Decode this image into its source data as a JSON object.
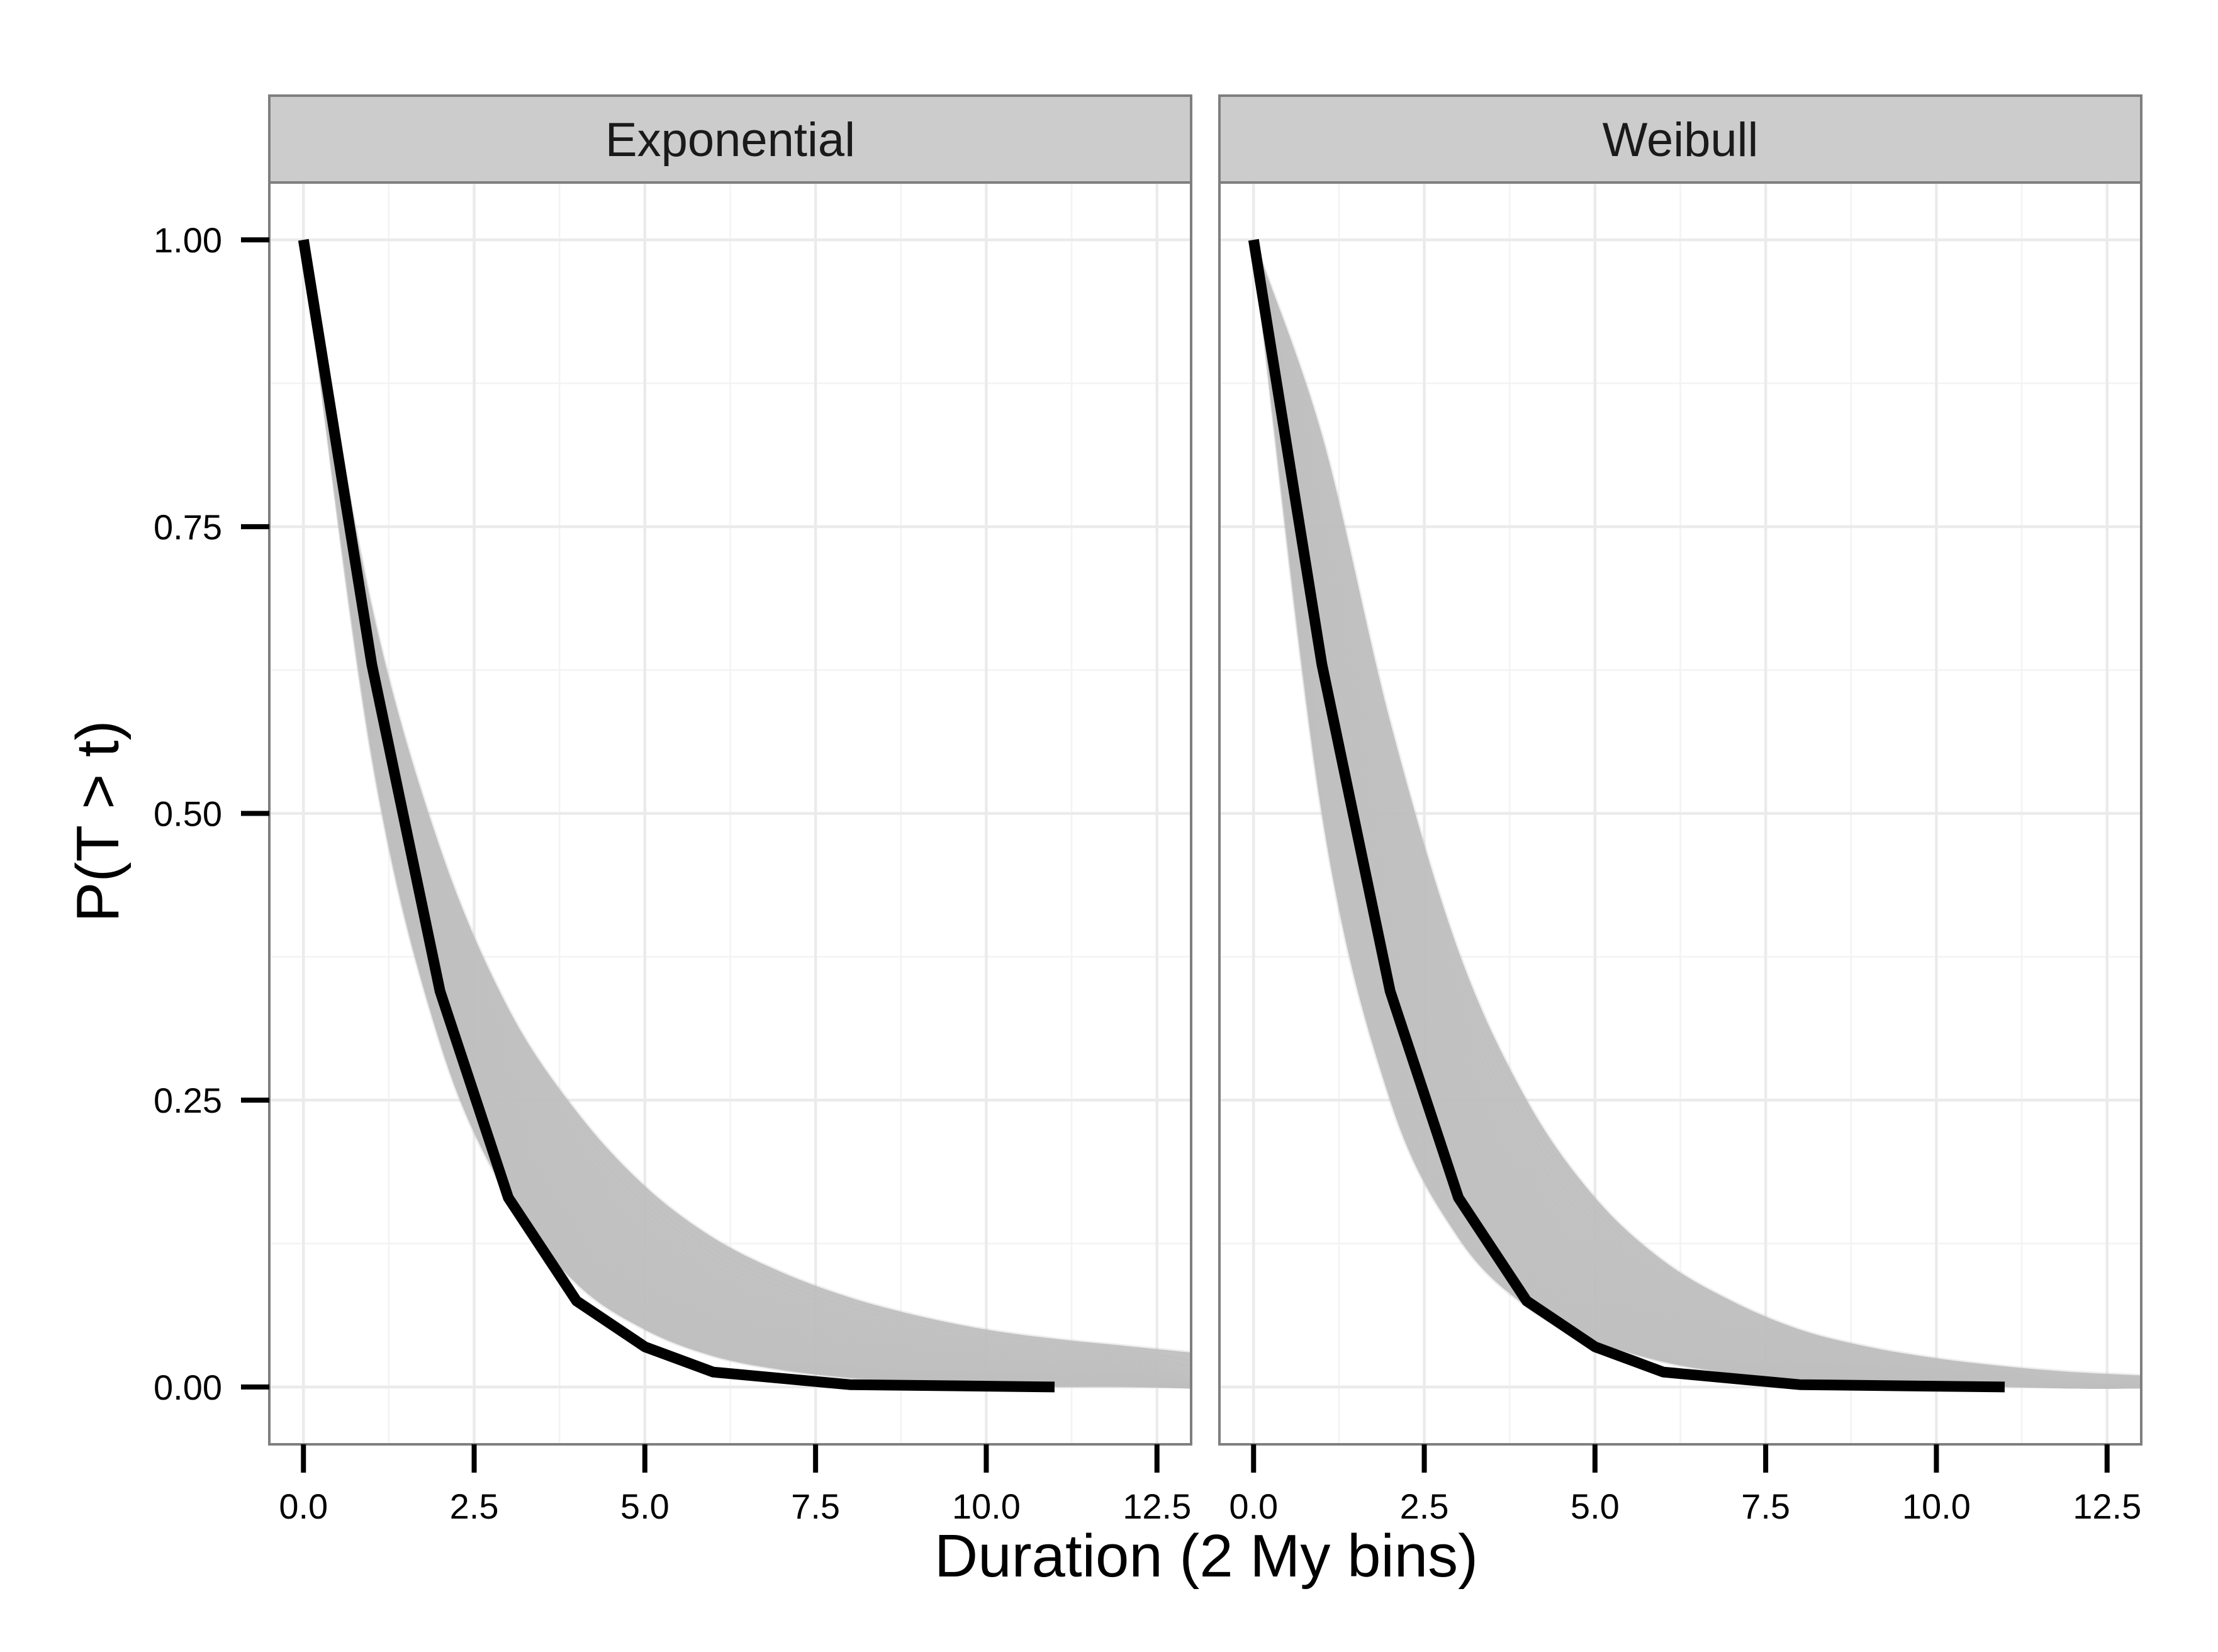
{
  "chart_data": {
    "type": "line",
    "facet_labels": [
      "Exponential",
      "Weibull"
    ],
    "xlabel": "Duration (2 My bins)",
    "ylabel": "P(T > t)",
    "xlim": [
      -0.5,
      13
    ],
    "ylim": [
      -0.05,
      1.05
    ],
    "x_ticks": [
      0,
      2.5,
      5,
      7.5,
      10,
      12.5
    ],
    "x_tick_labels": [
      "0.0",
      "2.5",
      "5.0",
      "7.5",
      "10.0",
      "12.5"
    ],
    "y_ticks": [
      0,
      0.25,
      0.5,
      0.75,
      1
    ],
    "y_tick_labels": [
      "0.00",
      "0.25",
      "0.50",
      "0.75",
      "1.00"
    ],
    "grid": true,
    "colors": {
      "observed": "#000000",
      "simulated": "#bdbdbd",
      "strip": "#cccccc",
      "border": "#7f7f7f"
    },
    "panels": [
      {
        "facet": "Exponential",
        "observed": {
          "x": [
            0,
            1,
            2,
            3,
            4,
            5,
            6,
            8,
            11
          ],
          "y": [
            1.0,
            0.63,
            0.345,
            0.165,
            0.075,
            0.035,
            0.013,
            0.002,
            0.0
          ]
        },
        "simulated_envelope": {
          "x": [
            0,
            1,
            2,
            3,
            4,
            5,
            6,
            7,
            8,
            9,
            10,
            11,
            12,
            13
          ],
          "lower": [
            1.0,
            0.55,
            0.3,
            0.165,
            0.09,
            0.05,
            0.027,
            0.015,
            0.008,
            0.004,
            0.002,
            0.001,
            0.001,
            0.0
          ],
          "upper": [
            1.0,
            0.68,
            0.47,
            0.33,
            0.24,
            0.175,
            0.13,
            0.1,
            0.078,
            0.062,
            0.05,
            0.042,
            0.036,
            0.03
          ]
        }
      },
      {
        "facet": "Weibull",
        "observed": {
          "x": [
            0,
            1,
            2,
            3,
            4,
            5,
            6,
            8,
            11
          ],
          "y": [
            1.0,
            0.63,
            0.345,
            0.165,
            0.075,
            0.035,
            0.013,
            0.002,
            0.0
          ]
        },
        "simulated_envelope": {
          "x": [
            0,
            1,
            2,
            3,
            4,
            5,
            6,
            7,
            8,
            9,
            10,
            11,
            12,
            13
          ],
          "lower": [
            1.0,
            0.5,
            0.25,
            0.13,
            0.07,
            0.04,
            0.022,
            0.012,
            0.007,
            0.004,
            0.002,
            0.001,
            0.0,
            0.0
          ],
          "upper": [
            1.0,
            0.83,
            0.58,
            0.38,
            0.25,
            0.165,
            0.11,
            0.075,
            0.05,
            0.035,
            0.025,
            0.018,
            0.013,
            0.01
          ]
        }
      }
    ]
  }
}
